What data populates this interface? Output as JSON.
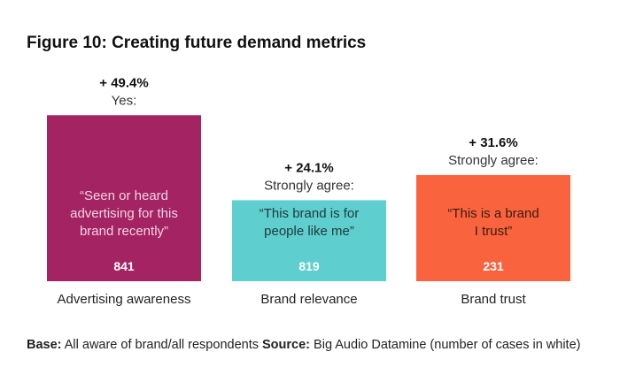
{
  "chart_data": {
    "type": "bar",
    "title": "Figure 10: Creating future demand metrics",
    "categories": [
      "Advertising awareness",
      "Brand relevance",
      "Brand trust"
    ],
    "values": [
      49.4,
      24.1,
      31.6
    ],
    "value_labels": [
      "+ 49.4%",
      "+ 24.1%",
      "+ 31.6%"
    ],
    "answer_labels": [
      "Yes:",
      "Strongly agree:",
      "Strongly agree:"
    ],
    "statements": [
      [
        "“Seen or heard",
        "advertising for this",
        "brand recently”"
      ],
      [
        "“This brand is for",
        "people like me”"
      ],
      [
        "“This is a brand",
        "I trust”"
      ]
    ],
    "cases": [
      "841",
      "819",
      "231"
    ],
    "colors": [
      "#A32363",
      "#5ECECE",
      "#F9643F"
    ],
    "text_colors": [
      "#F3D3E2",
      "#1F3A3A",
      "#3A1A10"
    ],
    "case_colors": [
      "#ffffff",
      "#ffffff",
      "#ffffff"
    ],
    "grid": false,
    "xlabel": "",
    "ylabel": ""
  },
  "footer": {
    "base_label": "Base:",
    "base_text": "All aware of brand/all respondents",
    "source_label": "Source:",
    "source_text": "Big Audio Datamine (number of cases in white)"
  }
}
